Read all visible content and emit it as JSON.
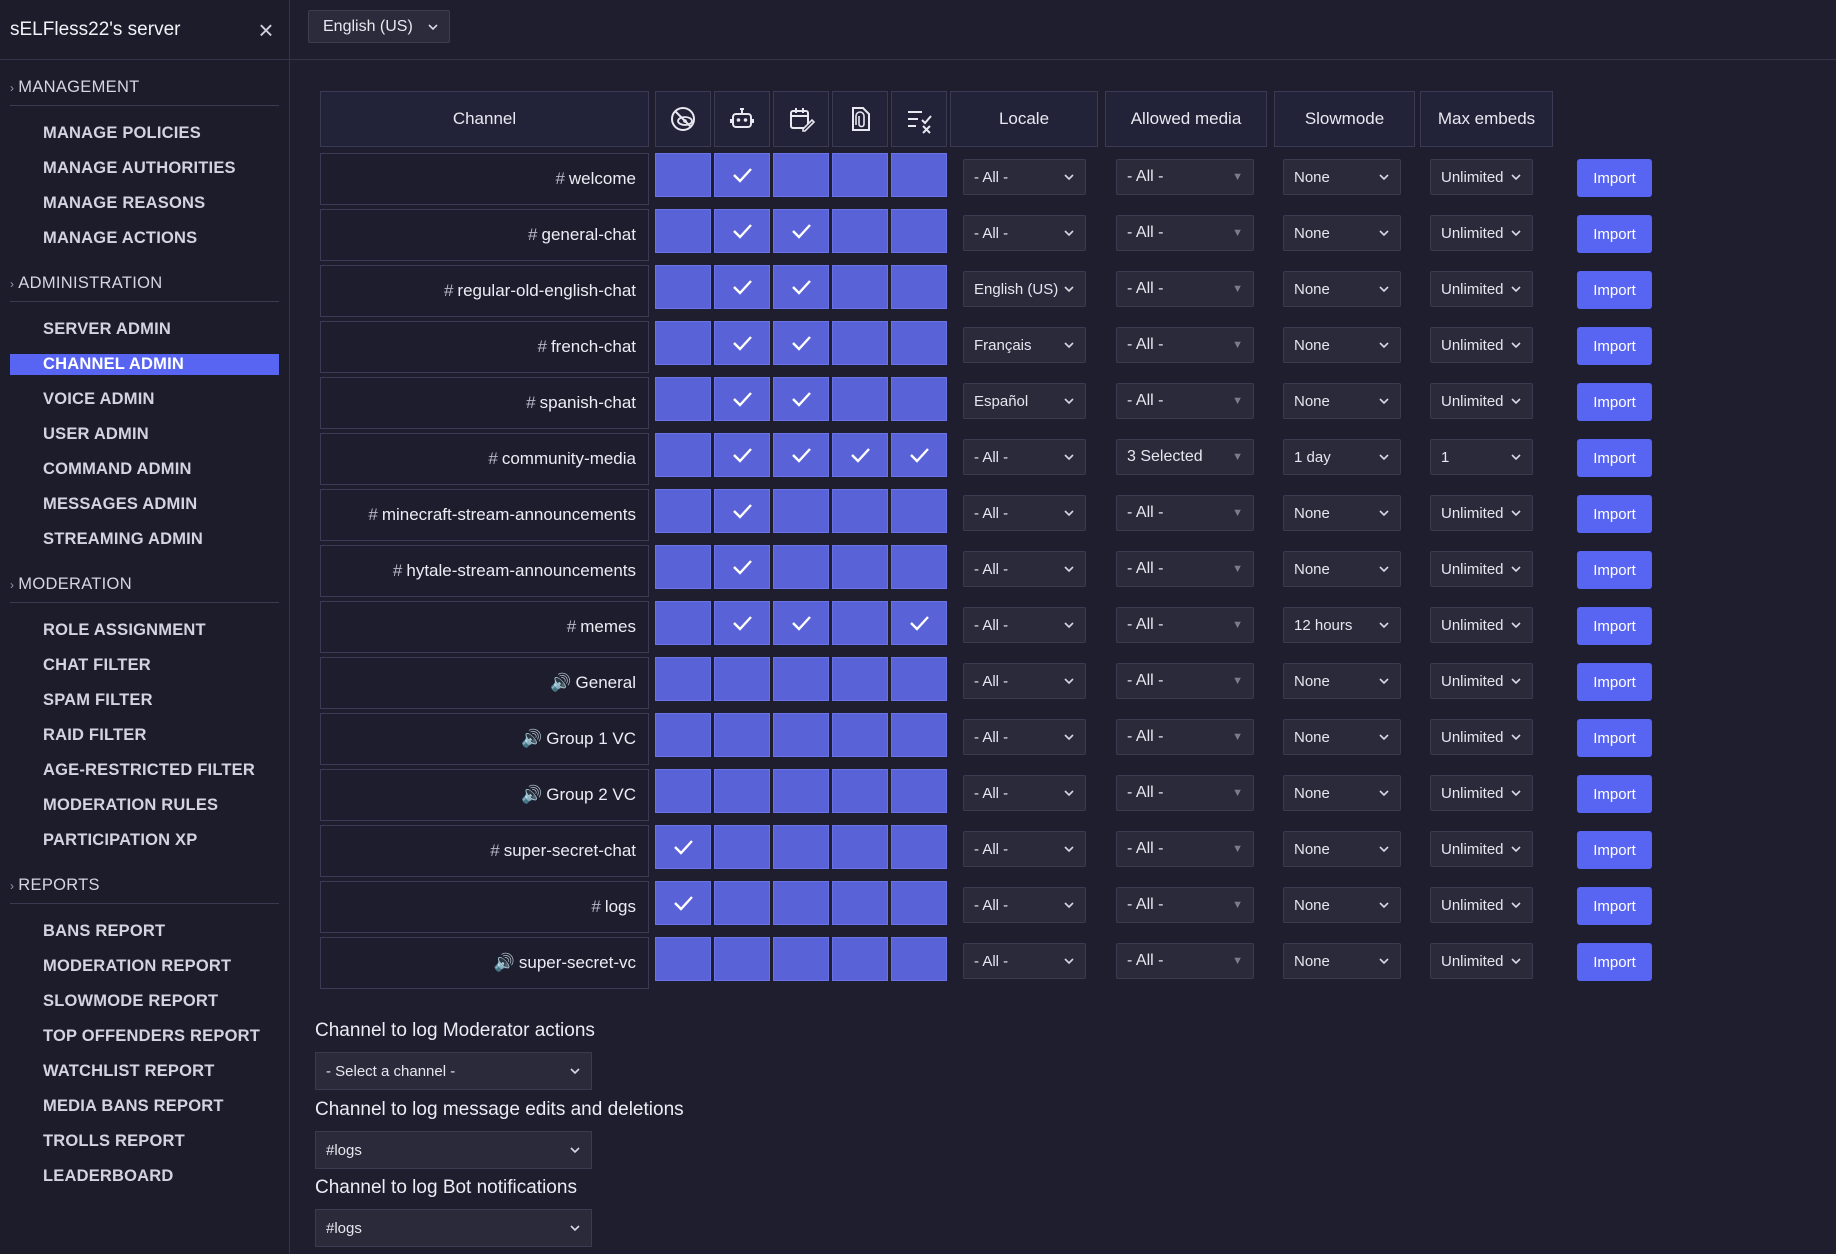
{
  "sidebar": {
    "server_name": "sELFless22's server",
    "close_icon": "×",
    "sections": [
      {
        "title": "MANAGEMENT",
        "items": [
          "MANAGE POLICIES",
          "MANAGE AUTHORITIES",
          "MANAGE REASONS",
          "MANAGE ACTIONS"
        ]
      },
      {
        "title": "ADMINISTRATION",
        "items": [
          "SERVER ADMIN",
          "CHANNEL ADMIN",
          "VOICE ADMIN",
          "USER ADMIN",
          "COMMAND ADMIN",
          "MESSAGES ADMIN",
          "STREAMING ADMIN"
        ]
      },
      {
        "title": "MODERATION",
        "items": [
          "ROLE ASSIGNMENT",
          "CHAT FILTER",
          "SPAM FILTER",
          "RAID FILTER",
          "AGE-RESTRICTED FILTER",
          "MODERATION RULES",
          "PARTICIPATION XP"
        ]
      },
      {
        "title": "REPORTS",
        "items": [
          "BANS REPORT",
          "MODERATION REPORT",
          "SLOWMODE REPORT",
          "TOP OFFENDERS REPORT",
          "WATCHLIST REPORT",
          "MEDIA BANS REPORT",
          "TROLLS REPORT",
          "LEADERBOARD"
        ]
      }
    ],
    "active_item": "CHANNEL ADMIN"
  },
  "topbar": {
    "language": "English (US)"
  },
  "table": {
    "headers": {
      "channel": "Channel",
      "icons": [
        "eye-off-icon",
        "bot-icon",
        "calendar-edit-icon",
        "file-attachment-icon",
        "list-check-icon"
      ],
      "locale": "Locale",
      "allowed_media": "Allowed media",
      "slowmode": "Slowmode",
      "max_embeds": "Max embeds"
    },
    "import_label": "Import",
    "rows": [
      {
        "prefix": "#",
        "name": "welcome",
        "checks": [
          false,
          true,
          false,
          false,
          false
        ],
        "locale": "- All -",
        "media": "- All -",
        "slowmode": "None",
        "embeds": "Unlimited"
      },
      {
        "prefix": "#",
        "name": "general-chat",
        "checks": [
          false,
          true,
          true,
          false,
          false
        ],
        "locale": "- All -",
        "media": "- All -",
        "slowmode": "None",
        "embeds": "Unlimited"
      },
      {
        "prefix": "#",
        "name": "regular-old-english-chat",
        "checks": [
          false,
          true,
          true,
          false,
          false
        ],
        "locale": "English (US)",
        "media": "- All -",
        "slowmode": "None",
        "embeds": "Unlimited"
      },
      {
        "prefix": "#",
        "name": "french-chat",
        "checks": [
          false,
          true,
          true,
          false,
          false
        ],
        "locale": "Français",
        "media": "- All -",
        "slowmode": "None",
        "embeds": "Unlimited"
      },
      {
        "prefix": "#",
        "name": "spanish-chat",
        "checks": [
          false,
          true,
          true,
          false,
          false
        ],
        "locale": "Español",
        "media": "- All -",
        "slowmode": "None",
        "embeds": "Unlimited"
      },
      {
        "prefix": "#",
        "name": "community-media",
        "checks": [
          false,
          true,
          true,
          true,
          true
        ],
        "locale": "- All -",
        "media": "3 Selected",
        "slowmode": "1 day",
        "embeds": "1"
      },
      {
        "prefix": "#",
        "name": "minecraft-stream-announcements",
        "checks": [
          false,
          true,
          false,
          false,
          false
        ],
        "locale": "- All -",
        "media": "- All -",
        "slowmode": "None",
        "embeds": "Unlimited"
      },
      {
        "prefix": "#",
        "name": "hytale-stream-announcements",
        "checks": [
          false,
          true,
          false,
          false,
          false
        ],
        "locale": "- All -",
        "media": "- All -",
        "slowmode": "None",
        "embeds": "Unlimited"
      },
      {
        "prefix": "#",
        "name": "memes",
        "checks": [
          false,
          true,
          true,
          false,
          true
        ],
        "locale": "- All -",
        "media": "- All -",
        "slowmode": "12 hours",
        "embeds": "Unlimited"
      },
      {
        "prefix": "🔊",
        "name": "General",
        "checks": [
          false,
          false,
          false,
          false,
          false
        ],
        "locale": "- All -",
        "media": "- All -",
        "slowmode": "None",
        "embeds": "Unlimited"
      },
      {
        "prefix": "🔊",
        "name": "Group 1 VC",
        "checks": [
          false,
          false,
          false,
          false,
          false
        ],
        "locale": "- All -",
        "media": "- All -",
        "slowmode": "None",
        "embeds": "Unlimited"
      },
      {
        "prefix": "🔊",
        "name": "Group 2 VC",
        "checks": [
          false,
          false,
          false,
          false,
          false
        ],
        "locale": "- All -",
        "media": "- All -",
        "slowmode": "None",
        "embeds": "Unlimited"
      },
      {
        "prefix": "#",
        "name": "super-secret-chat",
        "checks": [
          true,
          false,
          false,
          false,
          false
        ],
        "locale": "- All -",
        "media": "- All -",
        "slowmode": "None",
        "embeds": "Unlimited"
      },
      {
        "prefix": "#",
        "name": "logs",
        "checks": [
          true,
          false,
          false,
          false,
          false
        ],
        "locale": "- All -",
        "media": "- All -",
        "slowmode": "None",
        "embeds": "Unlimited"
      },
      {
        "prefix": "🔊",
        "name": "super-secret-vc",
        "checks": [
          false,
          false,
          false,
          false,
          false
        ],
        "locale": "- All -",
        "media": "- All -",
        "slowmode": "None",
        "embeds": "Unlimited"
      }
    ]
  },
  "logs": [
    {
      "label": "Channel to log Moderator actions",
      "value": "- Select a channel -"
    },
    {
      "label": "Channel to log message edits and deletions",
      "value": "#logs"
    },
    {
      "label": "Channel to log Bot notifications",
      "value": "#logs"
    }
  ],
  "colors": {
    "accent": "#5865f2",
    "checkbox": "#5a62d8",
    "background": "#1e1e2e"
  }
}
